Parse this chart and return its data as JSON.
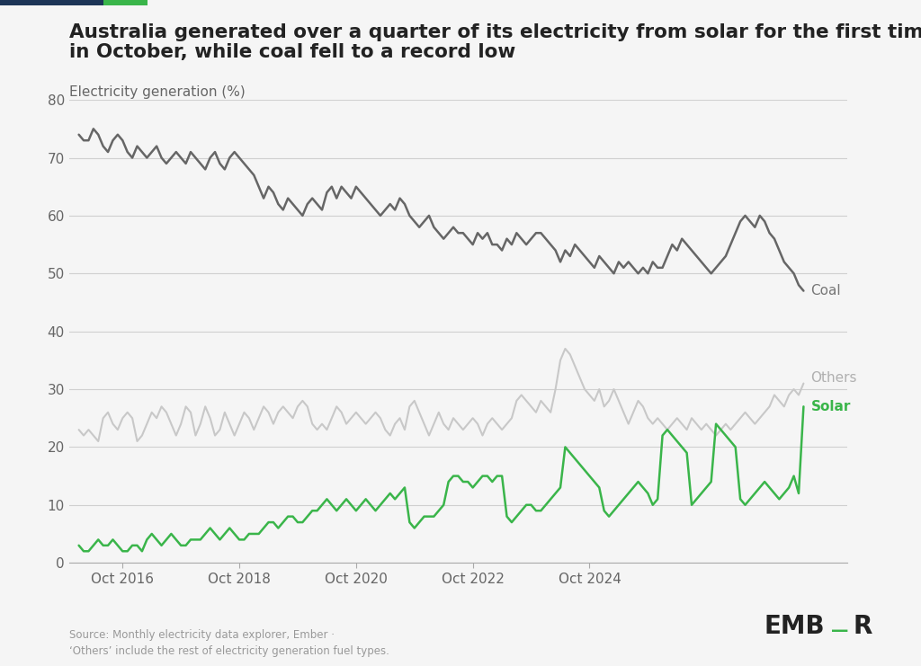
{
  "title_line1": "Australia generated over a quarter of its electricity from solar for the first time",
  "title_line2": "in October, while coal fell to a record low",
  "ylabel": "Electricity generation (%)",
  "source_text": "Source: Monthly electricity data explorer, Ember ·\n‘Others’ include the rest of electricity generation fuel types.",
  "background_color": "#f5f5f5",
  "coal_color": "#666666",
  "solar_color": "#3ab54a",
  "others_color": "#c8c8c8",
  "label_coal_color": "#777777",
  "label_others_color": "#b0b0b0",
  "ylim": [
    0,
    80
  ],
  "yticks": [
    0,
    10,
    20,
    30,
    40,
    50,
    60,
    70,
    80
  ],
  "xtick_labels": [
    "Oct 2016",
    "Oct 2018",
    "Oct 2020",
    "Oct 2022",
    "Oct 2024"
  ],
  "header_bar_dark": "#1d3557",
  "header_bar_green": "#3ab54a",
  "coal_data": [
    74,
    73,
    73,
    75,
    74,
    72,
    71,
    73,
    74,
    73,
    71,
    70,
    72,
    71,
    70,
    71,
    72,
    70,
    69,
    70,
    71,
    70,
    69,
    71,
    70,
    69,
    68,
    70,
    71,
    69,
    68,
    70,
    71,
    70,
    69,
    68,
    67,
    65,
    63,
    65,
    64,
    62,
    61,
    63,
    62,
    61,
    60,
    62,
    63,
    62,
    61,
    64,
    65,
    63,
    65,
    64,
    63,
    65,
    64,
    63,
    62,
    61,
    60,
    61,
    62,
    61,
    63,
    62,
    60,
    59,
    58,
    59,
    60,
    58,
    57,
    56,
    57,
    58,
    57,
    57,
    56,
    55,
    57,
    56,
    57,
    55,
    55,
    54,
    56,
    55,
    57,
    56,
    55,
    56,
    57,
    57,
    56,
    55,
    54,
    52,
    54,
    53,
    55,
    54,
    53,
    52,
    51,
    53,
    52,
    51,
    50,
    52,
    51,
    52,
    51,
    50,
    51,
    50,
    52,
    51,
    51,
    53,
    55,
    54,
    56,
    55,
    54,
    53,
    52,
    51,
    50,
    51,
    52,
    53,
    55,
    57,
    59,
    60,
    59,
    58,
    60,
    59,
    57,
    56,
    54,
    52,
    51,
    50,
    48,
    47
  ],
  "solar_data": [
    3,
    2,
    2,
    3,
    4,
    3,
    3,
    4,
    3,
    2,
    2,
    3,
    3,
    2,
    4,
    5,
    4,
    3,
    4,
    5,
    4,
    3,
    3,
    4,
    4,
    4,
    5,
    6,
    5,
    4,
    5,
    6,
    5,
    4,
    4,
    5,
    5,
    5,
    6,
    7,
    7,
    6,
    7,
    8,
    8,
    7,
    7,
    8,
    9,
    9,
    10,
    11,
    10,
    9,
    10,
    11,
    10,
    9,
    10,
    11,
    10,
    9,
    10,
    11,
    12,
    11,
    12,
    13,
    7,
    6,
    7,
    8,
    8,
    8,
    9,
    10,
    14,
    15,
    15,
    14,
    14,
    13,
    14,
    15,
    15,
    14,
    15,
    15,
    8,
    7,
    8,
    9,
    10,
    10,
    9,
    9,
    10,
    11,
    12,
    13,
    20,
    19,
    18,
    17,
    16,
    15,
    14,
    13,
    9,
    8,
    9,
    10,
    11,
    12,
    13,
    14,
    13,
    12,
    10,
    11,
    22,
    23,
    22,
    21,
    20,
    19,
    10,
    11,
    12,
    13,
    14,
    24,
    23,
    22,
    21,
    20,
    11,
    10,
    11,
    12,
    13,
    14,
    13,
    12,
    11,
    12,
    13,
    15,
    12,
    27
  ],
  "others_data": [
    23,
    22,
    23,
    22,
    21,
    25,
    26,
    24,
    23,
    25,
    26,
    25,
    21,
    22,
    24,
    26,
    25,
    27,
    26,
    24,
    22,
    24,
    27,
    26,
    22,
    24,
    27,
    25,
    22,
    23,
    26,
    24,
    22,
    24,
    26,
    25,
    23,
    25,
    27,
    26,
    24,
    26,
    27,
    26,
    25,
    27,
    28,
    27,
    24,
    23,
    24,
    23,
    25,
    27,
    26,
    24,
    25,
    26,
    25,
    24,
    25,
    26,
    25,
    23,
    22,
    24,
    25,
    23,
    27,
    28,
    26,
    24,
    22,
    24,
    26,
    24,
    23,
    25,
    24,
    23,
    24,
    25,
    24,
    22,
    24,
    25,
    24,
    23,
    24,
    25,
    28,
    29,
    28,
    27,
    26,
    28,
    27,
    26,
    30,
    35,
    37,
    36,
    34,
    32,
    30,
    29,
    28,
    30,
    27,
    28,
    30,
    28,
    26,
    24,
    26,
    28,
    27,
    25,
    24,
    25,
    24,
    23,
    24,
    25,
    24,
    23,
    25,
    24,
    23,
    24,
    23,
    22,
    23,
    24,
    23,
    24,
    25,
    26,
    25,
    24,
    25,
    26,
    27,
    29,
    28,
    27,
    29,
    30,
    29,
    31
  ]
}
